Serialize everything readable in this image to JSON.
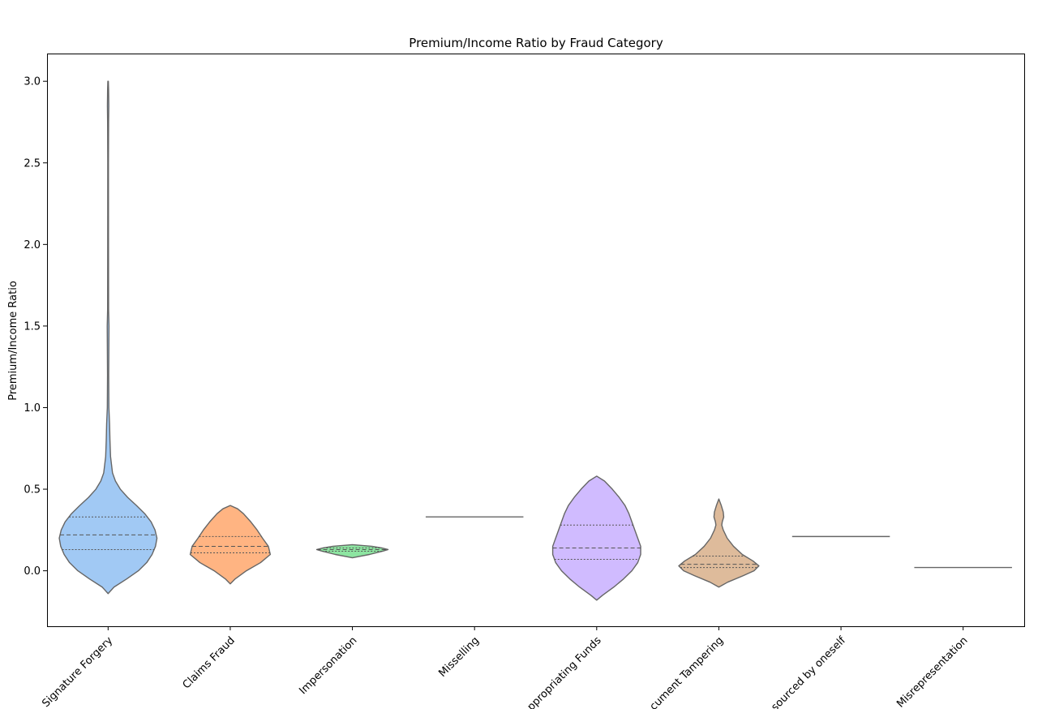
{
  "chart_data": {
    "type": "violin",
    "title": "Premium/Income Ratio by Fraud Category",
    "xlabel": "",
    "ylabel": "Premium/Income Ratio",
    "ylim": [
      -0.34,
      3.17
    ],
    "yticks": [
      0.0,
      0.5,
      1.0,
      1.5,
      2.0,
      2.5,
      3.0
    ],
    "ytick_labels": [
      "0.0",
      "0.5",
      "1.0",
      "1.5",
      "2.0",
      "2.5",
      "3.0"
    ],
    "grid": false,
    "legend": "none",
    "inner": "quartile",
    "categories": [
      "Signature Forgery",
      "Claims Fraud",
      "Impersonation",
      "Misselling",
      "ppropriating Funds",
      "cument Tampering",
      "sourced by oneself",
      "Misrepresentation"
    ],
    "violins": [
      {
        "color": "#a1c9f4",
        "min": -0.14,
        "max": 3.0,
        "q1": 0.13,
        "median": 0.22,
        "q3": 0.33,
        "profile": [
          [
            -0.14,
            0.0
          ],
          [
            -0.1,
            0.12
          ],
          [
            -0.05,
            0.38
          ],
          [
            0.0,
            0.62
          ],
          [
            0.05,
            0.79
          ],
          [
            0.1,
            0.9
          ],
          [
            0.15,
            0.97
          ],
          [
            0.2,
            1.0
          ],
          [
            0.25,
            0.96
          ],
          [
            0.3,
            0.88
          ],
          [
            0.35,
            0.75
          ],
          [
            0.4,
            0.58
          ],
          [
            0.45,
            0.4
          ],
          [
            0.5,
            0.25
          ],
          [
            0.55,
            0.15
          ],
          [
            0.6,
            0.09
          ],
          [
            0.7,
            0.05
          ],
          [
            0.8,
            0.038
          ],
          [
            0.9,
            0.03
          ],
          [
            1.0,
            0.016
          ],
          [
            1.2,
            0.012
          ],
          [
            1.4,
            0.016
          ],
          [
            1.5,
            0.018
          ],
          [
            1.6,
            0.01
          ],
          [
            2.0,
            0.008
          ],
          [
            2.5,
            0.007
          ],
          [
            2.75,
            0.01
          ],
          [
            2.85,
            0.014
          ],
          [
            2.95,
            0.01
          ],
          [
            3.0,
            0.005
          ]
        ]
      },
      {
        "color": "#ffb482",
        "min": -0.08,
        "max": 0.4,
        "q1": 0.11,
        "median": 0.15,
        "q3": 0.21,
        "profile": [
          [
            -0.08,
            0.0
          ],
          [
            -0.05,
            0.1
          ],
          [
            0.0,
            0.33
          ],
          [
            0.05,
            0.62
          ],
          [
            0.1,
            0.82
          ],
          [
            0.15,
            0.78
          ],
          [
            0.2,
            0.66
          ],
          [
            0.25,
            0.55
          ],
          [
            0.3,
            0.42
          ],
          [
            0.35,
            0.27
          ],
          [
            0.38,
            0.15
          ],
          [
            0.4,
            0.0
          ]
        ]
      },
      {
        "color": "#8de5a1",
        "min": 0.08,
        "max": 0.16,
        "q1": 0.12,
        "median": 0.13,
        "q3": 0.14,
        "profile": [
          [
            0.08,
            0.0
          ],
          [
            0.1,
            0.35
          ],
          [
            0.12,
            0.62
          ],
          [
            0.13,
            0.73
          ],
          [
            0.14,
            0.6
          ],
          [
            0.15,
            0.4
          ],
          [
            0.16,
            0.0
          ]
        ]
      },
      {
        "color": "#ff9f9b",
        "single_value": 0.33
      },
      {
        "color": "#d0bbff",
        "min": -0.18,
        "max": 0.58,
        "q1": 0.07,
        "median": 0.14,
        "q3": 0.28,
        "profile": [
          [
            -0.18,
            0.0
          ],
          [
            -0.15,
            0.12
          ],
          [
            -0.1,
            0.35
          ],
          [
            -0.05,
            0.55
          ],
          [
            0.0,
            0.72
          ],
          [
            0.05,
            0.84
          ],
          [
            0.1,
            0.9
          ],
          [
            0.15,
            0.9
          ],
          [
            0.2,
            0.84
          ],
          [
            0.25,
            0.78
          ],
          [
            0.3,
            0.72
          ],
          [
            0.35,
            0.66
          ],
          [
            0.4,
            0.58
          ],
          [
            0.45,
            0.46
          ],
          [
            0.5,
            0.32
          ],
          [
            0.55,
            0.16
          ],
          [
            0.58,
            0.0
          ]
        ]
      },
      {
        "color": "#debb9b",
        "min": -0.1,
        "max": 0.44,
        "q1": 0.02,
        "median": 0.04,
        "q3": 0.09,
        "profile": [
          [
            -0.1,
            0.0
          ],
          [
            -0.07,
            0.18
          ],
          [
            -0.03,
            0.5
          ],
          [
            0.0,
            0.72
          ],
          [
            0.03,
            0.82
          ],
          [
            0.06,
            0.7
          ],
          [
            0.1,
            0.48
          ],
          [
            0.15,
            0.3
          ],
          [
            0.2,
            0.17
          ],
          [
            0.25,
            0.09
          ],
          [
            0.28,
            0.06
          ],
          [
            0.3,
            0.07
          ],
          [
            0.33,
            0.1
          ],
          [
            0.36,
            0.09
          ],
          [
            0.4,
            0.05
          ],
          [
            0.44,
            0.0
          ]
        ]
      },
      {
        "color": "#fab0e4",
        "single_value": 0.21
      },
      {
        "color": "#cfcfcf",
        "single_value": 0.02
      }
    ]
  }
}
